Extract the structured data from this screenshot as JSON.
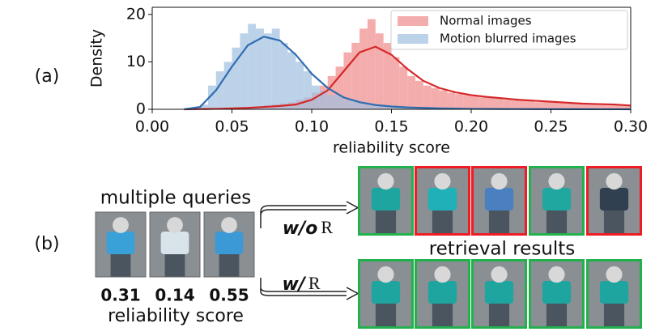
{
  "chart_data": {
    "type": "histogram",
    "panel_label": "(a)",
    "xlabel": "reliability score",
    "ylabel": "Density",
    "xlim": [
      0,
      0.3
    ],
    "ylim": [
      0,
      21.5
    ],
    "xticks": [
      {
        "value": 0,
        "label": "0.00"
      },
      0.05,
      {
        "value": 0.1,
        "label": "0.10"
      },
      0.15,
      {
        "value": 0.2,
        "label": "0.20"
      },
      0.25,
      {
        "value": 0.3,
        "label": "0.30"
      }
    ],
    "yticks": [
      0,
      10,
      20
    ],
    "grid": false,
    "legend": "upper right",
    "bins": [
      0.03,
      0.035,
      0.04,
      0.045,
      0.05,
      0.055,
      0.06,
      0.065,
      0.07,
      0.075,
      0.08,
      0.085,
      0.09,
      0.095,
      0.1,
      0.105,
      0.11,
      0.115,
      0.12,
      0.125,
      0.13,
      0.135,
      0.14,
      0.145,
      0.15,
      0.155,
      0.16,
      0.165,
      0.17,
      0.175,
      0.18,
      0.185,
      0.19,
      0.195,
      0.2,
      0.205,
      0.21,
      0.215,
      0.22,
      0.225,
      0.23,
      0.235,
      0.24,
      0.245,
      0.25,
      0.255,
      0.26,
      0.265,
      0.27,
      0.275,
      0.28,
      0.285,
      0.29,
      0.295,
      0.3
    ],
    "kde_x": [
      0.02,
      0.03,
      0.04,
      0.05,
      0.06,
      0.07,
      0.08,
      0.09,
      0.1,
      0.11,
      0.12,
      0.13,
      0.14,
      0.15,
      0.16,
      0.17,
      0.18,
      0.19,
      0.2,
      0.21,
      0.22,
      0.23,
      0.24,
      0.25,
      0.26,
      0.27,
      0.28,
      0.29,
      0.3
    ],
    "series": [
      {
        "name": "Normal images",
        "color": "#f08a8a",
        "kde_color": "#d62728",
        "values": [
          0,
          0,
          0,
          0.2,
          0.3,
          0.4,
          0.5,
          0.6,
          0.8,
          1,
          1.2,
          1.5,
          2,
          2.5,
          3.5,
          5,
          7,
          9,
          12,
          14,
          17,
          19,
          16,
          14,
          11,
          9,
          7,
          6,
          5,
          4.5,
          4,
          3.5,
          3.2,
          3,
          2.8,
          2.5,
          2.4,
          2.2,
          2,
          2,
          1.8,
          1.7,
          1.5,
          1.5,
          1.4,
          1.3,
          1.2,
          1.1,
          1,
          1,
          0.9,
          0.8,
          0.8,
          0.7
        ],
        "kde": [
          0,
          0.05,
          0.1,
          0.2,
          0.3,
          0.5,
          0.7,
          1,
          2,
          4,
          8,
          12,
          13.2,
          11.5,
          8.5,
          6,
          4.5,
          3.6,
          3,
          2.6,
          2.3,
          2,
          1.8,
          1.6,
          1.4,
          1.2,
          1.1,
          1,
          0.8
        ]
      },
      {
        "name": "Motion blurred images",
        "color": "#9fbfe0",
        "kde_color": "#2f6db0",
        "values": [
          1,
          5,
          8,
          10,
          13,
          16,
          18,
          17,
          16,
          17,
          14,
          12,
          10,
          8,
          5,
          4,
          3,
          3,
          2,
          2,
          1.5,
          1,
          1,
          0.8,
          0.6,
          0.4,
          0.3,
          0,
          0,
          0,
          0,
          0,
          0,
          0,
          0,
          0,
          0,
          0,
          0,
          0,
          0,
          0,
          0,
          0,
          0,
          0,
          0,
          0,
          0,
          0,
          0,
          0,
          0,
          0
        ],
        "kde": [
          0,
          0.5,
          4,
          9,
          13.5,
          15.3,
          14.5,
          11.5,
          7.5,
          4.5,
          2.5,
          1.5,
          0.9,
          0.6,
          0.4,
          0.3,
          0.2,
          0.15,
          0.1,
          0.08,
          0.06,
          0.05,
          0.04,
          0.03,
          0.02,
          0.02,
          0.01,
          0.01,
          0
        ]
      }
    ]
  },
  "panel_b": {
    "panel_label": "(b)",
    "queries_title": "multiple queries",
    "scores": [
      "0.31",
      "0.14",
      "0.55"
    ],
    "scores_caption": "reliability score",
    "results_title": "retrieval results",
    "rows": [
      {
        "method": "w/o",
        "symbol": "R",
        "borders": [
          "#22b14c",
          "#ee1c24",
          "#ee1c24",
          "#22b14c",
          "#ee1c24"
        ]
      },
      {
        "method": "w/",
        "symbol": "R",
        "borders": [
          "#22b14c",
          "#22b14c",
          "#22b14c",
          "#22b14c",
          "#22b14c"
        ]
      }
    ]
  }
}
